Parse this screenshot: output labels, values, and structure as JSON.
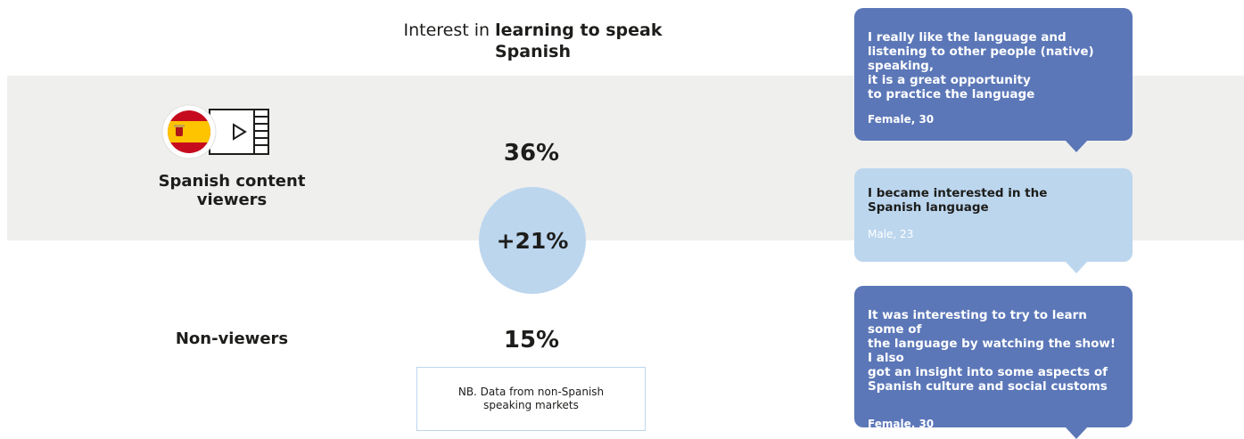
{
  "title": {
    "prefix": "Interest in ",
    "bold": "learning to speak Spanish"
  },
  "chart_data": {
    "type": "table",
    "title": "Interest in learning to speak Spanish",
    "categories": [
      "Spanish content viewers",
      "Non-viewers"
    ],
    "values": [
      36,
      15
    ],
    "value_labels": [
      "36%",
      "15%"
    ],
    "difference_label": "+21%",
    "note": "NB. Data from non-Spanish speaking markets"
  },
  "rows": [
    {
      "label": "Spanish content viewers",
      "value_label": "36%"
    },
    {
      "label": "Non-viewers",
      "value_label": "15%"
    }
  ],
  "icon": {
    "flag": "spain-flag-icon",
    "video": "video-play-icon"
  },
  "colors": {
    "dark_blue": "#5b77b8",
    "light_blue": "#bcd6ee",
    "band": "#efefed"
  },
  "quotes": [
    {
      "text": "I really like the language and\nlistening to other people (native) speaking,\nit is a great opportunity\nto practice the language",
      "attribution": "Female, 30"
    },
    {
      "text": "I became interested in the\nSpanish language",
      "attribution": "Male, 23"
    },
    {
      "text": "It was interesting to try to learn some of\nthe language by watching the show! I also\ngot an insight into some aspects of\nSpanish culture and social customs",
      "attribution": "Female, 30"
    }
  ]
}
